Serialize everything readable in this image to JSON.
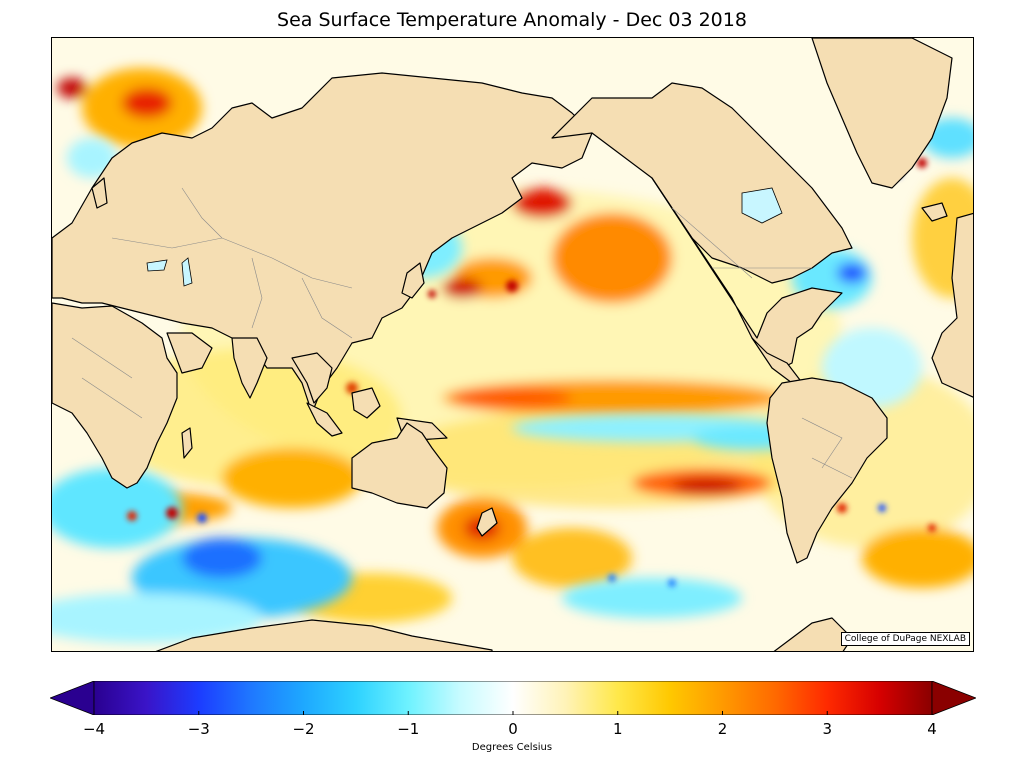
{
  "title": "Sea Surface Temperature Anomaly - Dec 03 2018",
  "credit": "College of DuPage NEXLAB",
  "colorbar": {
    "label": "Degrees Celsius",
    "ticks": [
      "−4",
      "−3",
      "−2",
      "−1",
      "0",
      "1",
      "2",
      "3",
      "4"
    ],
    "range": [
      -4,
      4
    ],
    "extend": "both",
    "colors": [
      "#2a0090",
      "#3a14c8",
      "#1c3cff",
      "#1f78ff",
      "#1ea8ff",
      "#2ed2ff",
      "#6ef2ff",
      "#c8fbff",
      "#ffffff",
      "#fff3b8",
      "#ffe84a",
      "#ffc800",
      "#ff9a00",
      "#ff6a00",
      "#ff2a00",
      "#d60000",
      "#8a0000"
    ]
  },
  "map": {
    "land_color": "#f5deb3",
    "ocean_base_color": "#fffbe6",
    "coastline_color": "#000000",
    "border_color": "#7a7a7a"
  }
}
